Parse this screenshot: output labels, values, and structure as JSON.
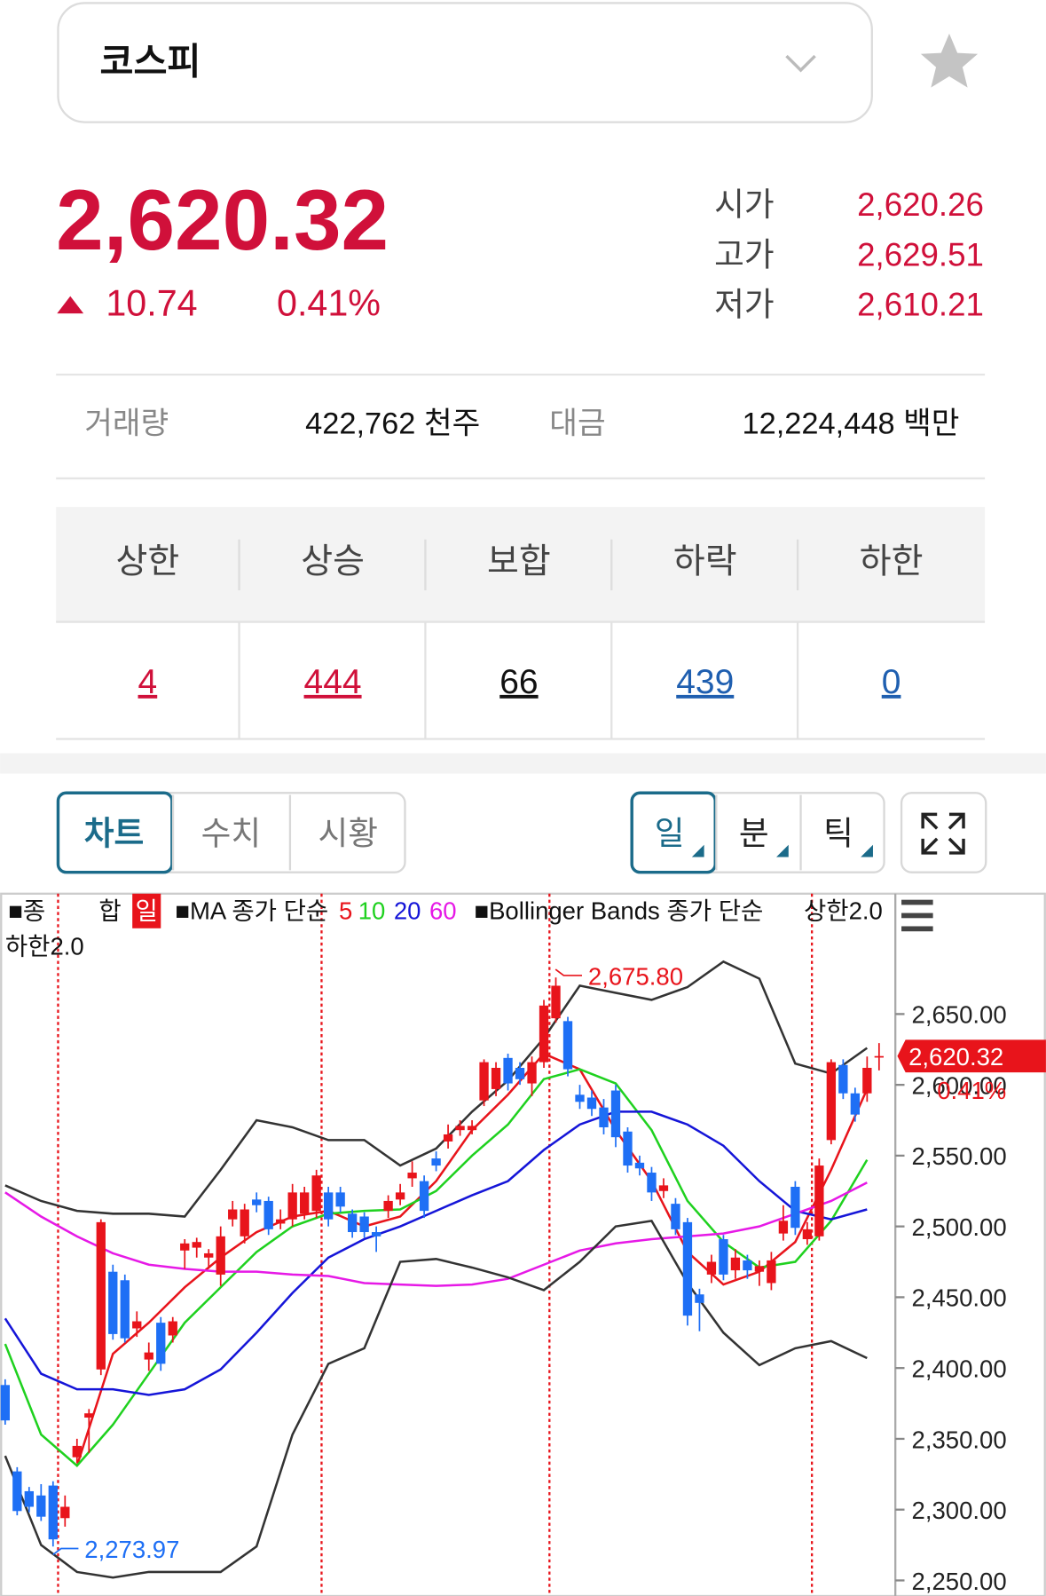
{
  "header": {
    "title": "코스피"
  },
  "quote": {
    "price": "2,620.32",
    "change": "10.74",
    "change_pct": "0.41%",
    "ohlc": [
      {
        "label": "시가",
        "value": "2,620.26"
      },
      {
        "label": "고가",
        "value": "2,629.51"
      },
      {
        "label": "저가",
        "value": "2,610.21"
      }
    ]
  },
  "trade": {
    "volume_label": "거래량",
    "volume": "422,762 천주",
    "amount_label": "대금",
    "amount": "12,224,448 백만"
  },
  "breadth": {
    "headers": [
      "상한",
      "상승",
      "보합",
      "하락",
      "하한"
    ],
    "values": [
      "4",
      "444",
      "66",
      "439",
      "0"
    ]
  },
  "tabs": [
    "차트",
    "수치",
    "시황"
  ],
  "periods": [
    "일",
    "분",
    "틱"
  ],
  "chart_data": {
    "type": "candlestick",
    "legend": {
      "symbol": "■종",
      "symbol2": "합",
      "period": "일",
      "ma": "■MA 종가 단순",
      "bb": "■Bollinger Bands 종가 단순"
    },
    "ylim": [
      2239,
      2735
    ],
    "yticks": [
      {
        "value": 2650,
        "label": "2,650.00"
      },
      {
        "value": 2600,
        "label": "2,600.00"
      },
      {
        "value": 2550,
        "label": "2,550.00"
      },
      {
        "value": 2500,
        "label": "2,500.00"
      },
      {
        "value": 2450,
        "label": "2,450.00"
      },
      {
        "value": 2400,
        "label": "2,400.00"
      },
      {
        "value": 2350,
        "label": "2,350.00"
      },
      {
        "value": 2300,
        "label": "2,300.00"
      },
      {
        "value": 2250,
        "label": "2,250.00"
      }
    ],
    "up_color": "#e8141b",
    "down_color": "#1e6ff5",
    "open": [
      2388,
      2327,
      2313,
      2310,
      2317,
      2294,
      2337,
      2365,
      2399,
      2468,
      2462,
      2428,
      2406,
      2432,
      2423,
      2483,
      2485,
      2478,
      2466,
      2505,
      2493,
      2519,
      2518,
      2502,
      2505,
      2509,
      2511,
      2524,
      2524,
      2509,
      2507,
      2496,
      2511,
      2519,
      2534,
      2532,
      2548,
      2560,
      2568,
      2568,
      2589,
      2597,
      2619,
      2612,
      2601,
      2616,
      2647,
      2645,
      2593,
      2591,
      2584,
      2596,
      2567,
      2545,
      2538,
      2525,
      2516,
      2503,
      2452,
      2466,
      2491,
      2469,
      2476,
      2468,
      2460,
      2495,
      2528,
      2491,
      2493,
      2561,
      2614,
      2594,
      2594,
      2620.26
    ],
    "high": [
      2392,
      2330,
      2316,
      2318,
      2320,
      2310,
      2350,
      2371,
      2505,
      2473,
      2466,
      2440,
      2418,
      2436,
      2436,
      2491,
      2492,
      2484,
      2500,
      2518,
      2516,
      2524,
      2521,
      2512,
      2530,
      2528,
      2540,
      2528,
      2528,
      2512,
      2510,
      2500,
      2522,
      2530,
      2546,
      2536,
      2553,
      2572,
      2575,
      2575,
      2618,
      2616,
      2622,
      2616,
      2620,
      2660,
      2675.8,
      2648,
      2600,
      2596,
      2590,
      2600,
      2570,
      2550,
      2542,
      2534,
      2520,
      2506,
      2456,
      2480,
      2494,
      2484,
      2480,
      2476,
      2482,
      2515,
      2532,
      2503,
      2548,
      2618,
      2618,
      2598,
      2620,
      2629.51
    ],
    "low": [
      2360,
      2296,
      2298,
      2292,
      2273.97,
      2288,
      2333,
      2340,
      2395,
      2420,
      2418,
      2422,
      2398,
      2398,
      2418,
      2470,
      2478,
      2470,
      2458,
      2500,
      2488,
      2510,
      2494,
      2498,
      2500,
      2505,
      2506,
      2500,
      2510,
      2492,
      2492,
      2482,
      2506,
      2515,
      2528,
      2506,
      2539,
      2555,
      2564,
      2565,
      2585,
      2592,
      2596,
      2600,
      2592,
      2612,
      2644,
      2606,
      2583,
      2578,
      2565,
      2556,
      2538,
      2536,
      2518,
      2520,
      2494,
      2430,
      2426,
      2460,
      2462,
      2463,
      2463,
      2458,
      2455,
      2490,
      2494,
      2487,
      2490,
      2558,
      2590,
      2574,
      2588,
      2610.21
    ],
    "close": [
      2363,
      2299,
      2302,
      2295,
      2279,
      2302,
      2345,
      2368,
      2503,
      2424,
      2421,
      2433,
      2411,
      2403,
      2433,
      2488,
      2489,
      2481,
      2493,
      2512,
      2512,
      2515,
      2498,
      2505,
      2524,
      2524,
      2536,
      2505,
      2514,
      2496,
      2496,
      2493,
      2518,
      2524,
      2538,
      2511,
      2543,
      2565,
      2571,
      2571,
      2616,
      2612,
      2601,
      2604,
      2616,
      2656,
      2670,
      2611,
      2588,
      2583,
      2570,
      2563,
      2543,
      2541,
      2524,
      2529,
      2498,
      2437,
      2446,
      2475,
      2466,
      2478,
      2469,
      2472,
      2476,
      2504,
      2499,
      2498,
      2543,
      2616,
      2594,
      2579,
      2612,
      2620.32
    ],
    "line_x": [
      0,
      3,
      6,
      9,
      12,
      15,
      18,
      21,
      24,
      27,
      30,
      33,
      36,
      39,
      42,
      45,
      48,
      51,
      54,
      57,
      60,
      63,
      66,
      69,
      72
    ],
    "series": [
      {
        "name": "5",
        "color": "#e8141b",
        "values": [
          null,
          null,
          2331,
          2410,
          2432,
          2457,
          2478,
          2496,
          2507,
          2511,
          2500,
          2507,
          2532,
          2568,
          2593,
          2622,
          2611,
          2568,
          2532,
          2482,
          2459,
          2468,
          2489,
          2540,
          2597
        ]
      },
      {
        "name": "10",
        "color": "#1fd11f",
        "values": [
          2417,
          2353,
          2331,
          2360,
          2396,
          2432,
          2457,
          2482,
          2500,
          2509,
          2511,
          2512,
          2525,
          2550,
          2572,
          2604,
          2611,
          2601,
          2568,
          2518,
          2489,
          2471,
          2475,
          2504,
          2547
        ]
      },
      {
        "name": "20",
        "color": "#1515d8",
        "values": [
          2435,
          2396,
          2385,
          2385,
          2381,
          2385,
          2399,
          2425,
          2453,
          2478,
          2491,
          2500,
          2511,
          2522,
          2532,
          2554,
          2572,
          2581,
          2581,
          2572,
          2557,
          2532,
          2511,
          2505,
          2512
        ]
      },
      {
        "name": "60",
        "color": "#e619e6",
        "values": [
          2524,
          2507,
          2493,
          2481,
          2473,
          2470,
          2468,
          2468,
          2466,
          2465,
          2460,
          2459,
          2458,
          2459,
          2463,
          2473,
          2483,
          2488,
          2491,
          2493,
          2495,
          2500,
          2509,
          2518,
          2531
        ]
      },
      {
        "name": "상한2.0",
        "color": "#333333",
        "values": [
          2529,
          2518,
          2511,
          2509,
          2509,
          2507,
          2540,
          2575,
          2570,
          2561,
          2561,
          2543,
          2555,
          2581,
          2603,
          2633,
          2670,
          2665,
          2660,
          2669,
          2687,
          2675,
          2615,
          2608,
          2626
        ]
      },
      {
        "name": "하한2.0",
        "color": "#333333",
        "values": [
          2338,
          2275,
          2256,
          2252,
          2256,
          2256,
          2256,
          2274,
          2353,
          2403,
          2414,
          2475,
          2477,
          2471,
          2464,
          2455,
          2475,
          2500,
          2504,
          2460,
          2425,
          2402,
          2414,
          2419,
          2407
        ]
      }
    ],
    "annotations": [
      {
        "value": 2675.8,
        "label": "2,675.80"
      },
      {
        "value": 2273.97,
        "label": "2,273.97"
      }
    ],
    "last": {
      "value": 2620.32,
      "label": "2,620.32",
      "change": "0.41%"
    }
  }
}
